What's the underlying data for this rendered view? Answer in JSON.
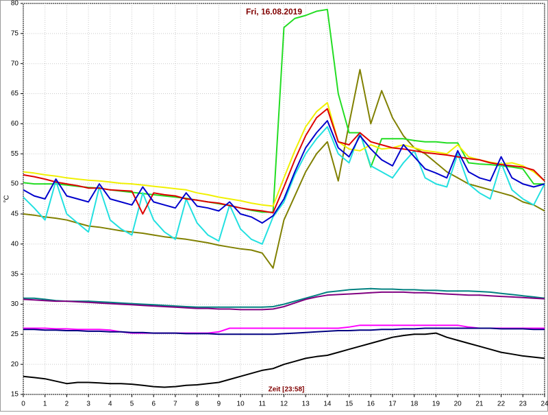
{
  "chart_data": {
    "type": "line",
    "title": "Fri, 16.08.2019",
    "x_label": "Zeit [23:58]",
    "y_label": "°C",
    "grid": true,
    "xlim": [
      0,
      24
    ],
    "ylim": [
      15,
      80
    ],
    "xticks": [
      0,
      1,
      2,
      3,
      4,
      5,
      6,
      7,
      8,
      9,
      10,
      11,
      12,
      13,
      14,
      15,
      16,
      17,
      18,
      19,
      20,
      21,
      22,
      23,
      24
    ],
    "yticks": [
      15,
      20,
      25,
      30,
      35,
      40,
      45,
      50,
      55,
      60,
      65,
      70,
      75,
      80
    ],
    "x": [
      0,
      0.5,
      1,
      1.5,
      2,
      2.5,
      3,
      3.5,
      4,
      4.5,
      5,
      5.5,
      6,
      6.5,
      7,
      7.5,
      8,
      8.5,
      9,
      9.5,
      10,
      10.5,
      11,
      11.5,
      12,
      12.5,
      13,
      13.5,
      14,
      14.5,
      15,
      15.5,
      16,
      16.5,
      17,
      17.5,
      18,
      18.5,
      19,
      19.5,
      20,
      20.5,
      21,
      21.5,
      22,
      22.5,
      23,
      23.5,
      24
    ],
    "series": [
      {
        "color": "#008080",
        "values": [
          31,
          31,
          30.8,
          30.6,
          30.5,
          30.5,
          30.5,
          30.4,
          30.3,
          30.2,
          30.1,
          30,
          29.9,
          29.8,
          29.7,
          29.6,
          29.5,
          29.5,
          29.5,
          29.5,
          29.5,
          29.5,
          29.5,
          29.6,
          30,
          30.5,
          31,
          31.5,
          32,
          32.2,
          32.4,
          32.5,
          32.6,
          32.5,
          32.5,
          32.4,
          32.4,
          32.3,
          32.3,
          32.2,
          32.2,
          32.2,
          32.1,
          32,
          31.8,
          31.6,
          31.4,
          31.2,
          31
        ]
      },
      {
        "color": "#800080",
        "values": [
          30.8,
          30.7,
          30.6,
          30.5,
          30.5,
          30.4,
          30.3,
          30.2,
          30.1,
          30,
          29.9,
          29.8,
          29.7,
          29.6,
          29.5,
          29.4,
          29.3,
          29.3,
          29.2,
          29.2,
          29.1,
          29.1,
          29.1,
          29.2,
          29.6,
          30.2,
          30.8,
          31.2,
          31.5,
          31.6,
          31.7,
          31.8,
          31.9,
          32,
          32,
          32,
          31.9,
          31.9,
          31.8,
          31.7,
          31.6,
          31.5,
          31.5,
          31.4,
          31.3,
          31.2,
          31.1,
          31,
          30.9
        ]
      },
      {
        "color": "#ff00ff",
        "values": [
          26,
          26,
          26,
          25.9,
          25.9,
          25.8,
          25.8,
          25.8,
          25.7,
          25.4,
          25.2,
          25.2,
          25.2,
          25.2,
          25.2,
          25.2,
          25.2,
          25.2,
          25.4,
          26,
          26,
          26,
          26,
          26,
          26,
          26,
          26,
          26,
          26,
          26,
          26.2,
          26.5,
          26.5,
          26.5,
          26.5,
          26.5,
          26.5,
          26.5,
          26.5,
          26.5,
          26.5,
          26.2,
          26,
          26,
          26,
          26,
          26,
          26,
          26
        ]
      },
      {
        "color": "#000080",
        "values": [
          25.8,
          25.8,
          25.7,
          25.7,
          25.6,
          25.6,
          25.5,
          25.5,
          25.4,
          25.4,
          25.3,
          25.3,
          25.2,
          25.2,
          25.2,
          25.1,
          25.1,
          25.1,
          25,
          25,
          25,
          25,
          25,
          25,
          25.1,
          25.2,
          25.3,
          25.4,
          25.5,
          25.6,
          25.6,
          25.7,
          25.7,
          25.8,
          25.8,
          25.9,
          25.9,
          26,
          26,
          26,
          26,
          26,
          26,
          26,
          25.9,
          25.9,
          25.9,
          25.8,
          25.8
        ]
      },
      {
        "color": "#000000",
        "values": [
          18,
          17.8,
          17.6,
          17.2,
          16.8,
          17,
          17,
          16.9,
          16.8,
          16.8,
          16.7,
          16.5,
          16.3,
          16.2,
          16.3,
          16.5,
          16.6,
          16.8,
          17,
          17.5,
          18,
          18.5,
          19,
          19.3,
          20,
          20.5,
          21,
          21.3,
          21.5,
          22,
          22.5,
          23,
          23.5,
          24,
          24.5,
          24.8,
          25,
          25,
          25.2,
          24.5,
          24,
          23.5,
          23,
          22.5,
          22,
          21.7,
          21.4,
          21.2,
          21
        ]
      },
      {
        "color": "#808000",
        "values": [
          45,
          44.8,
          44.5,
          44.3,
          44,
          43.5,
          43,
          42.8,
          42.5,
          42.2,
          42,
          41.8,
          41.5,
          41.2,
          41,
          40.8,
          40.5,
          40.2,
          39.8,
          39.5,
          39.2,
          39,
          38.5,
          36,
          44,
          48,
          52,
          55,
          57,
          50.5,
          60,
          69,
          60,
          65.5,
          61,
          58,
          56,
          55,
          53.5,
          52,
          51,
          50,
          49.5,
          49,
          48.5,
          48,
          47,
          46.5,
          45.5
        ]
      },
      {
        "color": "#22dd22",
        "values": [
          50.2,
          50,
          50,
          50,
          49.8,
          49.6,
          49.4,
          49.3,
          49,
          48.8,
          48.6,
          48.4,
          48.2,
          48,
          47.8,
          47.6,
          47.3,
          47,
          46.7,
          46.4,
          46,
          45.6,
          45.3,
          45.3,
          76,
          77.5,
          78,
          78.7,
          79,
          65,
          58.5,
          58.5,
          52.8,
          57.5,
          57.5,
          57.5,
          57.2,
          57,
          57,
          56.8,
          56.8,
          53.5,
          53.3,
          53.2,
          53,
          52.8,
          52.5,
          50,
          50
        ]
      },
      {
        "color": "#22e0e0",
        "values": [
          47.8,
          46,
          44,
          50.5,
          45,
          43.5,
          42,
          49.5,
          44,
          42.5,
          41.5,
          48.5,
          44,
          42,
          40.8,
          47.5,
          43.5,
          41.5,
          40.5,
          46.5,
          42.5,
          40.8,
          40,
          44.5,
          47,
          51.5,
          55,
          57.5,
          59.5,
          55,
          53.5,
          58.5,
          53,
          52,
          51,
          53.5,
          55.5,
          51,
          50,
          49.5,
          55,
          50,
          48.5,
          47.5,
          53.5,
          49,
          47.5,
          46.5,
          50
        ]
      },
      {
        "color": "#f0f000",
        "values": [
          52,
          51.8,
          51.5,
          51.3,
          51,
          50.8,
          50.6,
          50.5,
          50.3,
          50.1,
          50,
          49.8,
          49.6,
          49.4,
          49.2,
          49,
          48.5,
          48.2,
          47.8,
          47.5,
          47.2,
          46.8,
          46.5,
          46.3,
          51,
          55.5,
          59.5,
          62,
          63.5,
          57,
          55.8,
          55.5,
          56.5,
          55.8,
          56,
          56.5,
          56,
          55.5,
          55.3,
          55,
          56.5,
          54.5,
          54,
          53.6,
          53.3,
          53.5,
          53,
          52,
          50.5
        ]
      },
      {
        "color": "#dd0000",
        "values": [
          51.5,
          51.2,
          50.8,
          50.3,
          50,
          49.7,
          49.3,
          49.3,
          49,
          48.9,
          48.8,
          45,
          48.5,
          48.2,
          48,
          47.5,
          47.3,
          47,
          46.8,
          46.4,
          46,
          45.7,
          45.5,
          45.2,
          49.5,
          54,
          58,
          61,
          62.5,
          57,
          56.5,
          58.5,
          57,
          56.5,
          56,
          55.8,
          55.5,
          55.2,
          55,
          54.8,
          54.5,
          54.2,
          54,
          53.5,
          53.2,
          53,
          52.8,
          52.3,
          50.5
        ]
      },
      {
        "color": "#0000cc",
        "values": [
          49,
          48,
          47.5,
          50.8,
          48,
          47.5,
          47,
          50,
          47.5,
          47,
          46.5,
          49.5,
          47,
          46.5,
          46,
          48.5,
          46.3,
          46,
          45.5,
          47,
          45,
          44.5,
          43.5,
          44.7,
          47.5,
          52,
          56,
          58.5,
          60.5,
          56,
          54.5,
          58,
          55.8,
          54,
          53,
          56.5,
          54.5,
          52.5,
          51.8,
          51,
          55.5,
          52,
          51,
          50.5,
          54.5,
          51,
          50,
          49.5,
          50
        ]
      }
    ]
  }
}
